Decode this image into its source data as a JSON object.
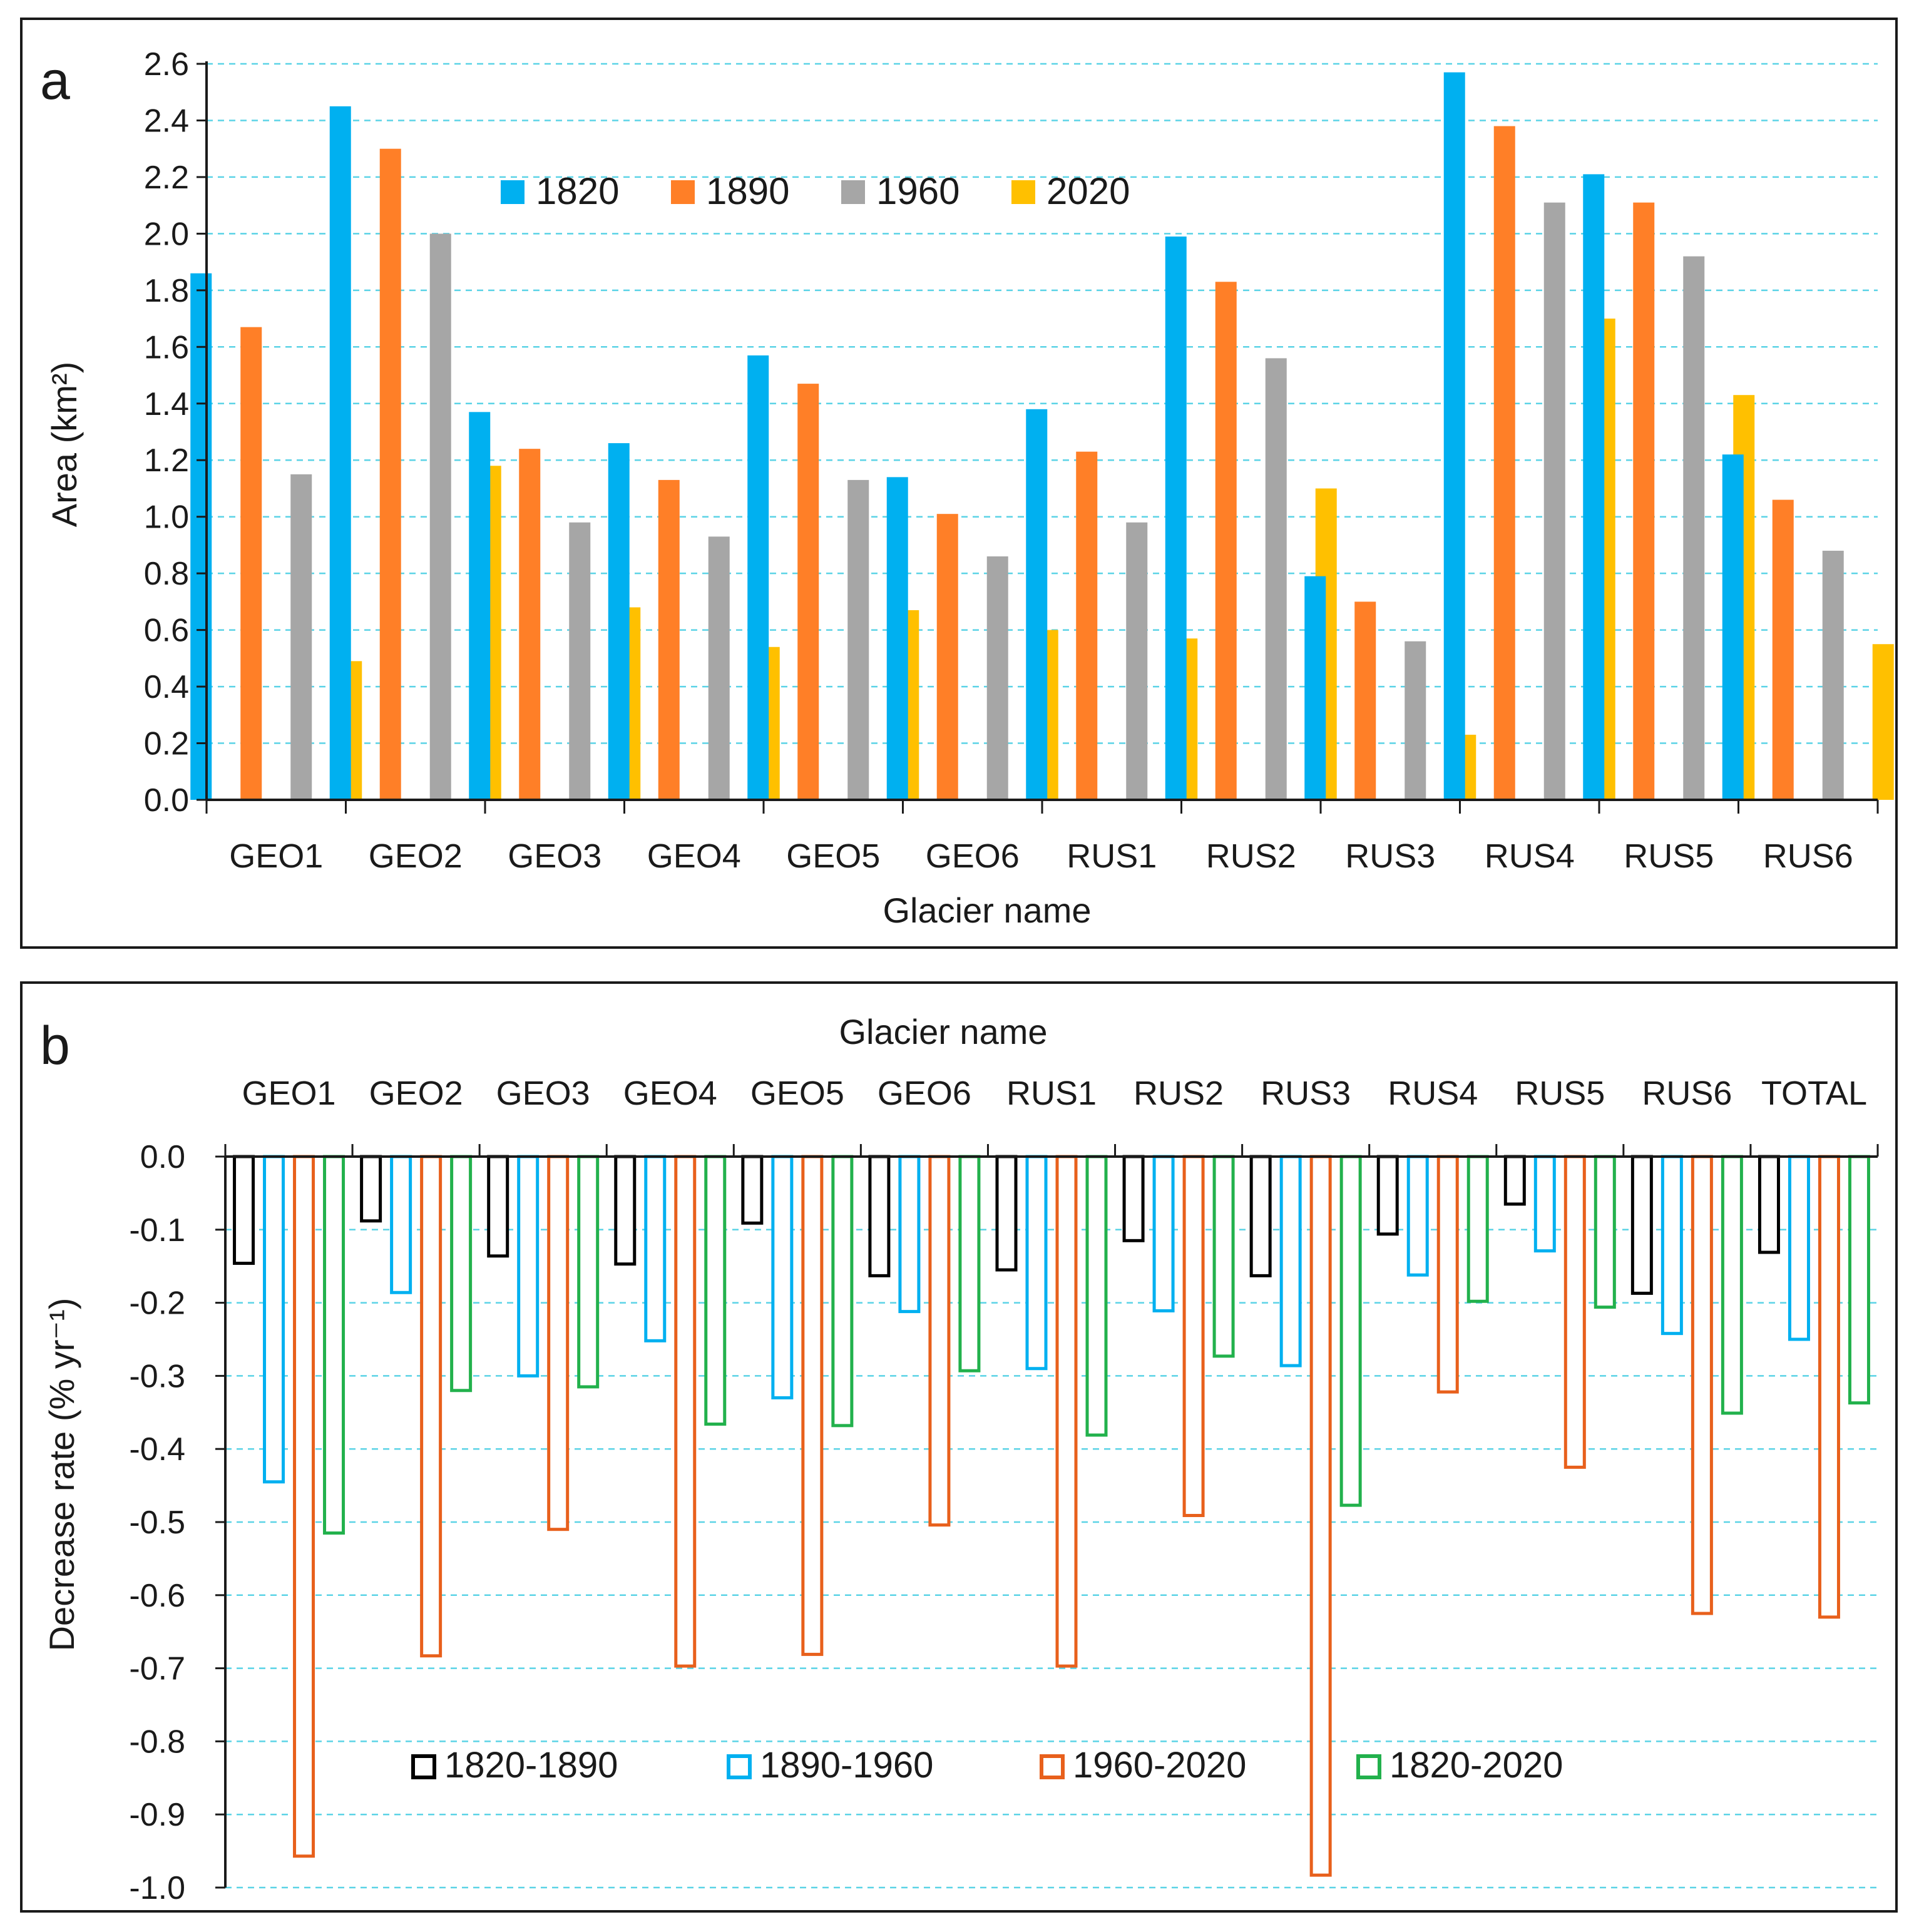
{
  "chart_data": [
    {
      "panel": "a",
      "type": "bar",
      "xlabel": "Glacier name",
      "ylabel": "Area (km²)",
      "ylim": [
        0,
        2.6
      ],
      "ytick_step": 0.2,
      "yticks": [
        "0.0",
        "0.2",
        "0.4",
        "0.6",
        "0.8",
        "1.0",
        "1.2",
        "1.4",
        "1.6",
        "1.8",
        "2.0",
        "2.2",
        "2.4",
        "2.6"
      ],
      "grid": true,
      "legend_position": "top-center",
      "categories": [
        "GEO1",
        "GEO2",
        "GEO3",
        "GEO4",
        "GEO5",
        "GEO6",
        "RUS1",
        "RUS2",
        "RUS3",
        "RUS4",
        "RUS5",
        "RUS6"
      ],
      "series": [
        {
          "name": "1820",
          "color": "#00B0F0",
          "values": [
            1.86,
            2.45,
            1.37,
            1.26,
            1.57,
            1.14,
            1.38,
            1.99,
            0.79,
            2.57,
            2.21,
            1.22
          ]
        },
        {
          "name": "1890",
          "color": "#FF7F27",
          "values": [
            1.67,
            2.3,
            1.24,
            1.13,
            1.47,
            1.01,
            1.23,
            1.83,
            0.7,
            2.38,
            2.11,
            1.06
          ]
        },
        {
          "name": "1960",
          "color": "#A6A6A6",
          "values": [
            1.15,
            2.0,
            0.98,
            0.93,
            1.13,
            0.86,
            0.98,
            1.56,
            0.56,
            2.11,
            1.92,
            0.88
          ]
        },
        {
          "name": "2020",
          "color": "#FFC000",
          "values": [
            0.49,
            1.18,
            0.68,
            0.54,
            0.67,
            0.6,
            0.57,
            1.1,
            0.23,
            1.7,
            1.43,
            0.55
          ]
        }
      ]
    },
    {
      "panel": "b",
      "type": "bar",
      "xlabel": "Glacier name",
      "ylabel": "Decrease rate (% yr⁻¹)",
      "ylim": [
        -1.0,
        0.0
      ],
      "ytick_step": 0.1,
      "yticks": [
        "0.0",
        "-0.1",
        "-0.2",
        "-0.3",
        "-0.4",
        "-0.5",
        "-0.6",
        "-0.7",
        "-0.8",
        "-0.9",
        "-1.0"
      ],
      "grid": true,
      "legend_position": "bottom-center",
      "categories": [
        "GEO1",
        "GEO2",
        "GEO3",
        "GEO4",
        "GEO5",
        "GEO6",
        "RUS1",
        "RUS2",
        "RUS3",
        "RUS4",
        "RUS5",
        "RUS6",
        "TOTAL"
      ],
      "series": [
        {
          "name": "1820-1890",
          "color": "#000000",
          "values": [
            -0.146,
            -0.088,
            -0.136,
            -0.147,
            -0.091,
            -0.163,
            -0.155,
            -0.115,
            -0.163,
            -0.106,
            -0.065,
            -0.187,
            -0.131
          ]
        },
        {
          "name": "1890-1960",
          "color": "#00B0F0",
          "values": [
            -0.445,
            -0.186,
            -0.3,
            -0.252,
            -0.33,
            -0.212,
            -0.29,
            -0.211,
            -0.286,
            -0.162,
            -0.129,
            -0.242,
            -0.25
          ]
        },
        {
          "name": "1960-2020",
          "color": "#E8601C",
          "values": [
            -0.957,
            -0.683,
            -0.51,
            -0.697,
            -0.681,
            -0.504,
            -0.697,
            -0.491,
            -0.983,
            -0.322,
            -0.425,
            -0.625,
            -0.63
          ]
        },
        {
          "name": "1820-2020",
          "color": "#22B14C",
          "values": [
            -0.515,
            -0.32,
            -0.315,
            -0.366,
            -0.368,
            -0.293,
            -0.381,
            -0.273,
            -0.477,
            -0.198,
            -0.206,
            -0.351,
            -0.337
          ]
        }
      ]
    }
  ],
  "panels": {
    "a": {
      "label": "a"
    },
    "b": {
      "label": "b"
    }
  }
}
